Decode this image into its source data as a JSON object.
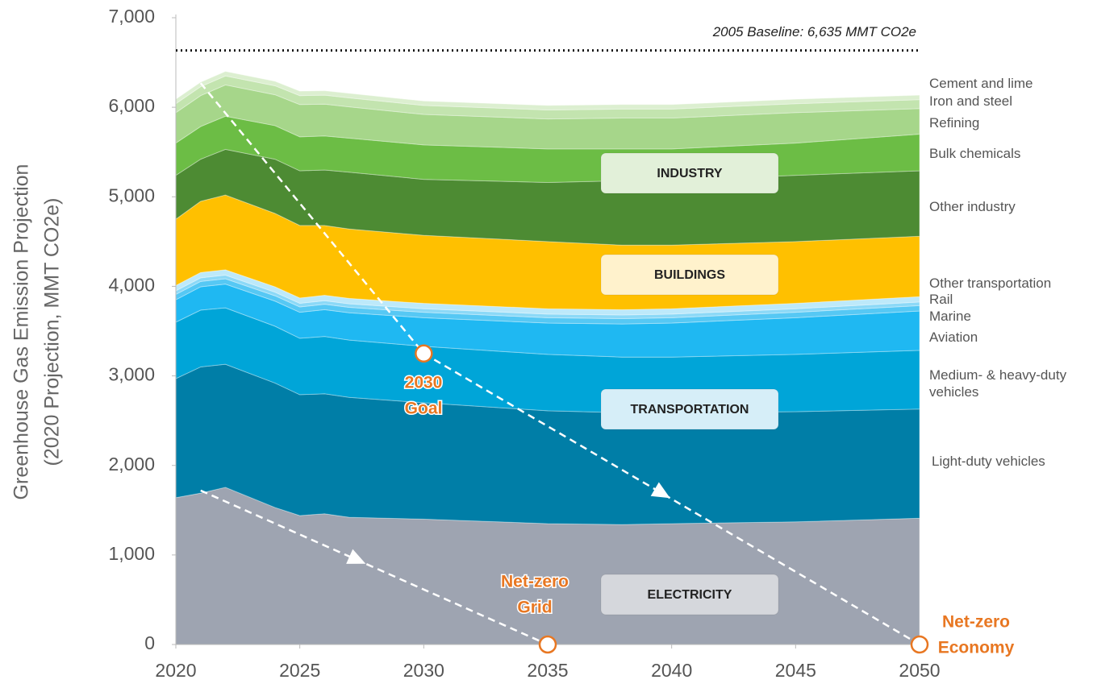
{
  "chart_data": {
    "type": "stacked_area",
    "ylabel": [
      "Greenhouse Gas Emission Projection",
      "(2020 Projection, MMT CO2e)"
    ],
    "x": [
      2020,
      2021,
      2022,
      2024,
      2025,
      2026,
      2027,
      2030,
      2035,
      2038,
      2040,
      2045,
      2050
    ],
    "xlim": [
      2020,
      2050
    ],
    "xticks": [
      2020,
      2025,
      2030,
      2035,
      2040,
      2045,
      2050
    ],
    "ylim": [
      0,
      7000
    ],
    "yticks": [
      0,
      {
        "value": 1000,
        "label": "1,000"
      },
      {
        "value": 2000,
        "label": "2,000"
      },
      {
        "value": 3000,
        "label": "3,000"
      },
      {
        "value": 4000,
        "label": "4,000"
      },
      {
        "value": 5000,
        "label": "5,000"
      },
      {
        "value": 6000,
        "label": "6,000"
      },
      {
        "value": 7000,
        "label": "7,000"
      }
    ],
    "grid": false,
    "series": [
      {
        "name": "ELECTRICITY",
        "color": "#9ea4b1",
        "values": [
          1640,
          1690,
          1755,
          1530,
          1440,
          1460,
          1420,
          1400,
          1350,
          1340,
          1350,
          1370,
          1410
        ]
      },
      {
        "name": "Light-duty vehicles",
        "color": "#007ea7",
        "values": [
          1330,
          1410,
          1375,
          1390,
          1350,
          1340,
          1340,
          1300,
          1260,
          1250,
          1240,
          1230,
          1220
        ]
      },
      {
        "name": "Medium- & heavy-duty vehicles",
        "color": "#00a5d8",
        "values": [
          630,
          635,
          630,
          635,
          630,
          640,
          640,
          630,
          630,
          620,
          620,
          640,
          655
        ]
      },
      {
        "name": "Aviation",
        "color": "#1fb8f2",
        "values": [
          250,
          260,
          265,
          280,
          290,
          300,
          305,
          320,
          350,
          370,
          380,
          410,
          440
        ]
      },
      {
        "name": "Marine",
        "color": "#56c8f4",
        "values": [
          60,
          60,
          60,
          60,
          60,
          60,
          60,
          60,
          60,
          60,
          60,
          60,
          60
        ]
      },
      {
        "name": "Rail",
        "color": "#8cd9f7",
        "values": [
          40,
          40,
          40,
          40,
          40,
          40,
          40,
          40,
          40,
          40,
          40,
          40,
          40
        ]
      },
      {
        "name": "Other transportation",
        "color": "#bde9fa",
        "values": [
          60,
          60,
          60,
          60,
          60,
          60,
          60,
          60,
          60,
          60,
          60,
          60,
          60
        ]
      },
      {
        "name": "BUILDINGS",
        "color": "#ffc000",
        "values": [
          740,
          795,
          835,
          820,
          810,
          780,
          775,
          760,
          750,
          720,
          710,
          690,
          675
        ]
      },
      {
        "name": "Other industry",
        "color": "#4d8b33",
        "values": [
          490,
          470,
          510,
          605,
          610,
          620,
          635,
          625,
          660,
          720,
          725,
          740,
          730
        ]
      },
      {
        "name": "Bulk chemicals",
        "color": "#6cbd45",
        "values": [
          360,
          365,
          370,
          375,
          380,
          380,
          380,
          385,
          375,
          355,
          350,
          360,
          410
        ]
      },
      {
        "name": "Refining",
        "color": "#a6d68a",
        "values": [
          340,
          345,
          350,
          345,
          360,
          355,
          350,
          340,
          335,
          345,
          345,
          340,
          285
        ]
      },
      {
        "name": "Iron and steel",
        "color": "#c3e4af",
        "values": [
          100,
          100,
          100,
          100,
          100,
          100,
          100,
          100,
          100,
          100,
          100,
          100,
          100
        ]
      },
      {
        "name": "Cement and lime",
        "color": "#dcefd0",
        "values": [
          50,
          50,
          50,
          50,
          50,
          50,
          50,
          50,
          50,
          50,
          50,
          50,
          50
        ]
      }
    ],
    "sectors": [
      "INDUSTRY",
      "TRANSPORTATION"
    ],
    "baseline": {
      "value": 6635,
      "label": "2005 Baseline: 6,635 MMT CO2e"
    },
    "pathways": [
      {
        "x": [
          2021,
          2030,
          2050
        ],
        "values": [
          6270,
          3250,
          0
        ]
      },
      {
        "x": [
          2021,
          2035
        ],
        "values": [
          1720,
          0
        ]
      }
    ],
    "milestones": [
      {
        "x": 2030,
        "value": 3250,
        "label": [
          "2030",
          "Goal"
        ]
      },
      {
        "x": 2035,
        "value": 0,
        "label": [
          "Net-zero",
          "Grid"
        ]
      },
      {
        "x": 2050,
        "value": 0,
        "label": [
          "Net-zero",
          "Economy"
        ]
      }
    ]
  }
}
